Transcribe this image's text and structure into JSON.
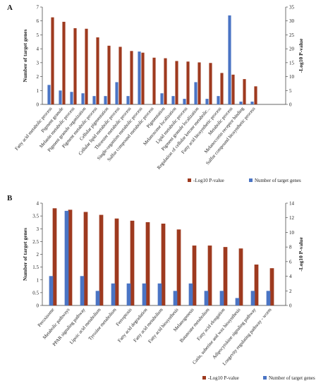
{
  "chart_data": [
    {
      "type": "bar",
      "panel_label": "A",
      "ylabel_left": "Number of target genes",
      "ylabel_right": "-Log10 P-value",
      "ylim_left": [
        0,
        7
      ],
      "ylim_right": [
        0,
        35
      ],
      "yticks_left": [
        "0",
        "1",
        "2",
        "3",
        "4",
        "5",
        "6",
        "7"
      ],
      "yticks_right": [
        "0",
        "5",
        "10",
        "15",
        "20",
        "25",
        "30",
        "35"
      ],
      "categories": [
        "Fatty acid metabolic process",
        "Pigment granule",
        "Melanin metabolic process",
        "Pigment granule organization",
        "Pigment metabolic process",
        "Cellular pigmentation",
        "Cellular lipid metabolic process",
        "Thioester metabolic process",
        "Single-organism metabolic process",
        "Sulfur compound metabolic process",
        "Pigmentation",
        "Melanosome localization",
        "Lipid metabolic process",
        "Pigment granule localization",
        "Regulation of cellular ketone metabolic...",
        "Fatty acid biosynthetic process",
        "Metabolic process",
        "Melanocortin receptor binding",
        "Sulfur compound biosynthetic process"
      ],
      "series": [
        {
          "name": "-Log10 P-value",
          "axis": "right",
          "color": "#9e3a1f",
          "values": [
            31.3,
            29.7,
            27.4,
            27.2,
            24.1,
            21.1,
            20.7,
            19.2,
            18.6,
            16.8,
            16.6,
            15.6,
            15.4,
            15.1,
            14.9,
            11.3,
            10.7,
            9.1,
            6.5
          ]
        },
        {
          "name": "Number of target genes",
          "axis": "left",
          "color": "#4a74c4",
          "values": [
            1.4,
            1.0,
            0.9,
            0.8,
            0.6,
            0.6,
            1.6,
            0.6,
            3.8,
            0.0,
            0.8,
            0.6,
            0.4,
            1.6,
            0.4,
            0.6,
            6.4,
            0.2,
            0.2
          ]
        }
      ],
      "legend_position": "bottom-right"
    },
    {
      "type": "bar",
      "panel_label": "B",
      "ylabel_left": "Number of target genes",
      "ylabel_right": "-Log10 P-value",
      "ylim_left": [
        0,
        4
      ],
      "ylim_right": [
        0,
        14
      ],
      "yticks_left": [
        "0",
        "0.5",
        "1",
        "1.5",
        "2",
        "2.5",
        "3",
        "3.5",
        "4"
      ],
      "yticks_right": [
        "0",
        "2",
        "4",
        "6",
        "8",
        "10",
        "12",
        "14"
      ],
      "categories": [
        "Peroxisome",
        "Metabolic pathways",
        "PPAR signaling pathway",
        "Lipoic acid metabolism",
        "Tyrosine metabolism",
        "Ferroptosis",
        "Fatty acid degradation",
        "Fatty acid metabolism",
        "Fatty acid biosynthesis",
        "Melanogenesis",
        "Butanoate metabolism",
        "Fatty acid elongation",
        "Cutin, suberine and wax biosynthesis",
        "Adipocytokine signaling pathway",
        "Longevity regulating pathway - worm"
      ],
      "series": [
        {
          "name": "-Log10 P-value",
          "axis": "right",
          "color": "#9e3a1f",
          "values": [
            13.3,
            13.1,
            12.8,
            12.4,
            11.9,
            11.6,
            11.4,
            11.2,
            10.4,
            8.2,
            8.2,
            8.0,
            7.8,
            5.6,
            5.1
          ]
        },
        {
          "name": "Number of target genes",
          "axis": "left",
          "color": "#4a74c4",
          "values": [
            1.15,
            3.7,
            1.15,
            0.57,
            0.86,
            0.86,
            0.86,
            0.86,
            0.57,
            0.86,
            0.57,
            0.57,
            0.29,
            0.57,
            0.57
          ]
        }
      ],
      "legend_position": "bottom-right"
    }
  ]
}
